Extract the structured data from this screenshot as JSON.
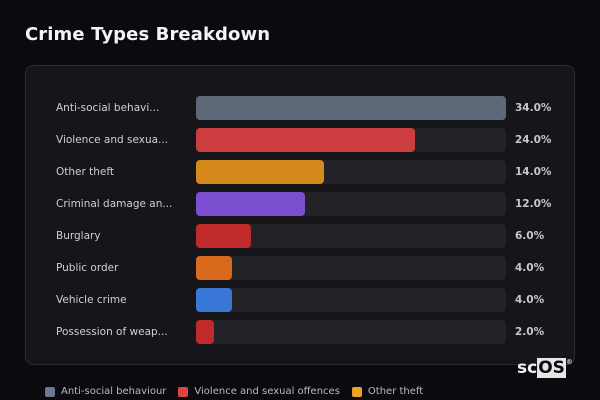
{
  "header": {
    "title": "Crime Types Breakdown"
  },
  "chart_data": {
    "type": "bar",
    "orientation": "horizontal",
    "title": "Crime Types Breakdown",
    "xlabel": "",
    "ylabel": "",
    "xlim": [
      0,
      34
    ],
    "grid": false,
    "legend_position": "bottom",
    "categories": [
      "Anti-social behaviour",
      "Violence and sexual offences",
      "Other theft",
      "Criminal damage and arson",
      "Burglary",
      "Public order",
      "Vehicle crime",
      "Possession of weapons"
    ],
    "display_labels": [
      "Anti-social behavi...",
      "Violence and sexua...",
      "Other theft",
      "Criminal damage an...",
      "Burglary",
      "Public order",
      "Vehicle crime",
      "Possession of weap..."
    ],
    "values": [
      34.0,
      24.0,
      14.0,
      12.0,
      6.0,
      4.0,
      4.0,
      2.0
    ],
    "value_labels": [
      "34.0%",
      "24.0%",
      "14.0%",
      "12.0%",
      "6.0%",
      "4.0%",
      "4.0%",
      "2.0%"
    ],
    "colors": [
      "#5c6878",
      "#cc3d3f",
      "#d4891a",
      "#7b4fd0",
      "#c12a2a",
      "#d86a1c",
      "#3a78d8",
      "#c12a2a"
    ]
  },
  "legend": [
    {
      "label": "Anti-social behaviour",
      "color": "#6b7a90"
    },
    {
      "label": "Violence and sexual offences",
      "color": "#e24444"
    },
    {
      "label": "Other theft",
      "color": "#f0a020"
    }
  ],
  "logo": {
    "text_a": "sc",
    "text_b": "OS",
    "reg": "®"
  }
}
